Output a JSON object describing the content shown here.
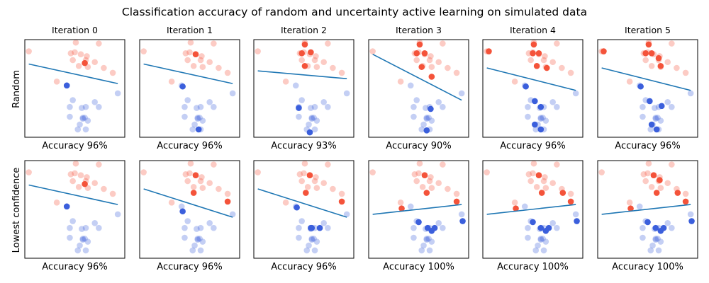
{
  "chart_data": {
    "type": "scatter",
    "title": "Classification accuracy of random and uncertainty active learning on simulated data",
    "iterations": [
      "Iteration 0",
      "Iteration 1",
      "Iteration 2",
      "Iteration 3",
      "Iteration 4",
      "Iteration 5"
    ],
    "row_labels": [
      "Random",
      "Lowest confidence"
    ],
    "colors": {
      "class_0": "#3b5fdc",
      "class_1": "#f4533a",
      "boundary": "#1f77b4"
    },
    "xlim": [
      0,
      10
    ],
    "ylim": [
      0,
      10
    ],
    "points": {
      "red": [
        [
          0.4,
          8.8
        ],
        [
          5.1,
          9.7
        ],
        [
          7.4,
          9.6
        ],
        [
          4.6,
          8.6
        ],
        [
          5.0,
          8.7
        ],
        [
          5.6,
          8.5
        ],
        [
          6.2,
          8.3
        ],
        [
          4.8,
          7.9
        ],
        [
          6.1,
          7.9
        ],
        [
          7.0,
          7.7
        ],
        [
          5.4,
          7.3
        ],
        [
          6.3,
          7.2
        ],
        [
          7.9,
          7.1
        ],
        [
          8.8,
          6.6
        ],
        [
          3.2,
          5.7
        ]
      ],
      "blue": [
        [
          4.2,
          5.3
        ],
        [
          9.3,
          4.5
        ],
        [
          4.8,
          3.8
        ],
        [
          7.0,
          3.6
        ],
        [
          4.5,
          3.1
        ],
        [
          7.4,
          3.1
        ],
        [
          5.7,
          3.0
        ],
        [
          6.1,
          3.1
        ],
        [
          4.5,
          2.1
        ],
        [
          6.0,
          2.0
        ],
        [
          6.3,
          1.7
        ],
        [
          5.8,
          1.9
        ],
        [
          5.5,
          1.3
        ],
        [
          6.1,
          0.8
        ],
        [
          5.3,
          0.8
        ],
        [
          5.8,
          2.0
        ]
      ]
    },
    "grid": false,
    "legend": "none",
    "panels": [
      {
        "row": "Random",
        "items": [
          {
            "iteration": "Iteration 0",
            "accuracy_label": "Accuracy 96%",
            "boundary": [
              [
                0.4,
                7.5
              ],
              [
                9.3,
                5.5
              ]
            ],
            "labeled": [
              [
                6.0,
                7.6
              ],
              [
                4.2,
                5.3
              ]
            ]
          },
          {
            "iteration": "Iteration 1",
            "accuracy_label": "Accuracy 96%",
            "boundary": [
              [
                0.4,
                7.5
              ],
              [
                9.3,
                5.5
              ]
            ],
            "labeled": [
              [
                5.6,
                8.5
              ],
              [
                4.3,
                5.2
              ],
              [
                5.9,
                0.8
              ]
            ]
          },
          {
            "iteration": "Iteration 2",
            "accuracy_label": "Accuracy 93%",
            "boundary": [
              [
                0.4,
                6.8
              ],
              [
                9.3,
                6.0
              ]
            ],
            "labeled": [
              [
                5.1,
                9.5
              ],
              [
                4.8,
                8.6
              ],
              [
                5.7,
                8.7
              ],
              [
                5.1,
                7.3
              ],
              [
                4.5,
                3.0
              ],
              [
                5.6,
                0.5
              ]
            ]
          },
          {
            "iteration": "Iteration 3",
            "accuracy_label": "Accuracy 90%",
            "boundary": [
              [
                0.4,
                8.5
              ],
              [
                9.3,
                3.8
              ]
            ],
            "labeled": [
              [
                5.1,
                9.5
              ],
              [
                4.8,
                8.6
              ],
              [
                5.6,
                8.6
              ],
              [
                5.3,
                7.2
              ],
              [
                6.3,
                6.2
              ],
              [
                6.2,
                2.9
              ],
              [
                5.8,
                0.7
              ]
            ]
          },
          {
            "iteration": "Iteration 4",
            "accuracy_label": "Accuracy 96%",
            "boundary": [
              [
                0.4,
                7.1
              ],
              [
                9.3,
                4.8
              ]
            ],
            "labeled": [
              [
                0.6,
                8.8
              ],
              [
                5.1,
                9.5
              ],
              [
                5.0,
                8.6
              ],
              [
                5.6,
                8.6
              ],
              [
                5.4,
                7.3
              ],
              [
                6.4,
                7.1
              ],
              [
                4.3,
                5.2
              ],
              [
                5.2,
                3.7
              ],
              [
                5.8,
                3.1
              ],
              [
                5.2,
                1.3
              ],
              [
                5.8,
                0.8
              ]
            ]
          },
          {
            "iteration": "Iteration 5",
            "accuracy_label": "Accuracy 96%",
            "boundary": [
              [
                0.4,
                7.1
              ],
              [
                9.3,
                4.8
              ]
            ],
            "labeled": [
              [
                0.6,
                8.8
              ],
              [
                5.1,
                9.5
              ],
              [
                4.8,
                8.6
              ],
              [
                5.4,
                8.6
              ],
              [
                6.1,
                8.1
              ],
              [
                6.3,
                7.3
              ],
              [
                4.3,
                5.2
              ],
              [
                5.2,
                3.7
              ],
              [
                6.4,
                3.2
              ],
              [
                5.4,
                1.3
              ],
              [
                5.9,
                0.8
              ]
            ]
          }
        ]
      },
      {
        "row": "Lowest confidence",
        "items": [
          {
            "iteration": "Iteration 0",
            "accuracy_label": "Accuracy 96%",
            "boundary": [
              [
                0.4,
                7.5
              ],
              [
                9.3,
                5.5
              ]
            ],
            "labeled": [
              [
                6.0,
                7.6
              ],
              [
                4.2,
                5.3
              ]
            ]
          },
          {
            "iteration": "Iteration 1",
            "accuracy_label": "Accuracy 96%",
            "boundary": [
              [
                0.4,
                7.1
              ],
              [
                9.3,
                4.2
              ]
            ],
            "labeled": [
              [
                5.6,
                8.5
              ],
              [
                5.4,
                6.7
              ],
              [
                4.3,
                4.8
              ],
              [
                8.8,
                5.8
              ]
            ]
          },
          {
            "iteration": "Iteration 2",
            "accuracy_label": "Accuracy 96%",
            "boundary": [
              [
                0.4,
                7.1
              ],
              [
                9.3,
                4.2
              ]
            ],
            "labeled": [
              [
                5.6,
                8.5
              ],
              [
                5.2,
                6.7
              ],
              [
                4.3,
                5.2
              ],
              [
                5.8,
                3.1
              ],
              [
                6.6,
                3.1
              ],
              [
                8.8,
                5.8
              ],
              [
                5.7,
                3.1
              ]
            ]
          },
          {
            "iteration": "Iteration 3",
            "accuracy_label": "Accuracy 100%",
            "boundary": [
              [
                0.4,
                4.5
              ],
              [
                9.3,
                5.5
              ]
            ],
            "labeled": [
              [
                5.6,
                8.5
              ],
              [
                5.8,
                6.7
              ],
              [
                3.3,
                5.1
              ],
              [
                8.8,
                5.8
              ],
              [
                5.9,
                3.1
              ],
              [
                6.6,
                3.1
              ],
              [
                5.0,
                3.7
              ],
              [
                9.4,
                3.8
              ],
              [
                6.3,
                2.8
              ]
            ]
          },
          {
            "iteration": "Iteration 4",
            "accuracy_label": "Accuracy 100%",
            "boundary": [
              [
                0.4,
                4.5
              ],
              [
                9.3,
                5.5
              ]
            ],
            "labeled": [
              [
                5.6,
                8.5
              ],
              [
                5.9,
                6.7
              ],
              [
                3.3,
                5.1
              ],
              [
                8.8,
                5.8
              ],
              [
                6.6,
                3.1
              ],
              [
                5.8,
                3.1
              ],
              [
                5.0,
                3.7
              ],
              [
                9.4,
                3.8
              ],
              [
                6.3,
                2.8
              ],
              [
                8.0,
                6.7
              ]
            ]
          },
          {
            "iteration": "Iteration 5",
            "accuracy_label": "Accuracy 100%",
            "boundary": [
              [
                0.4,
                4.5
              ],
              [
                9.3,
                5.5
              ]
            ],
            "labeled": [
              [
                5.6,
                8.5
              ],
              [
                5.9,
                6.7
              ],
              [
                3.3,
                5.1
              ],
              [
                8.8,
                5.8
              ],
              [
                6.6,
                3.1
              ],
              [
                5.8,
                3.1
              ],
              [
                5.0,
                3.7
              ],
              [
                9.4,
                3.8
              ],
              [
                6.3,
                2.8
              ],
              [
                8.0,
                6.7
              ],
              [
                6.2,
                8.0
              ]
            ]
          }
        ]
      }
    ]
  }
}
